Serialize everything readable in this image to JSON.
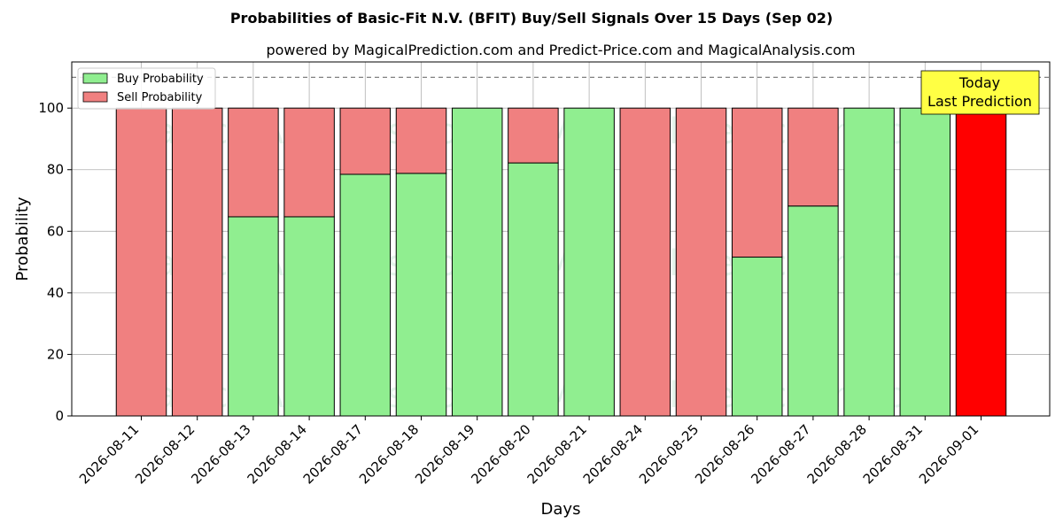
{
  "chart_data": {
    "type": "bar",
    "stacked": true,
    "title": "Probabilities of Basic-Fit N.V. (BFIT) Buy/Sell Signals Over 15 Days (Sep 02)",
    "subtitle": "powered by MagicalPrediction.com and Predict-Price.com and MagicalAnalysis.com",
    "xlabel": "Days",
    "ylabel": "Probability",
    "ylim": [
      0,
      115
    ],
    "yticks": [
      0,
      20,
      40,
      60,
      80,
      100
    ],
    "grid": true,
    "legend_position": "top-left",
    "reference_line": 110,
    "categories": [
      "2026-08-11",
      "2026-08-12",
      "2026-08-13",
      "2026-08-14",
      "2026-08-17",
      "2026-08-18",
      "2026-08-19",
      "2026-08-20",
      "2026-08-21",
      "2026-08-24",
      "2026-08-25",
      "2026-08-26",
      "2026-08-27",
      "2026-08-28",
      "2026-08-31",
      "2026-09-01"
    ],
    "series": [
      {
        "name": "Buy Probability",
        "color": "#90ee90",
        "values": [
          0,
          0,
          64.7,
          64.7,
          78.5,
          78.8,
          100,
          82.2,
          100,
          0,
          0,
          51.6,
          68.2,
          100,
          100,
          0
        ]
      },
      {
        "name": "Sell Probability",
        "color": "#f08080",
        "values": [
          100,
          100,
          35.3,
          35.3,
          21.5,
          21.2,
          0,
          17.8,
          0,
          100,
          100,
          48.4,
          31.8,
          0,
          0,
          100
        ]
      }
    ],
    "highlight": {
      "index": 15,
      "color": "#ff0000"
    },
    "annotation": {
      "lines": [
        "Today",
        "Last Prediction"
      ],
      "color": "#ffff44"
    },
    "watermark": [
      "MagicalAnalysis.com",
      "MagicalPrediction.com"
    ]
  }
}
